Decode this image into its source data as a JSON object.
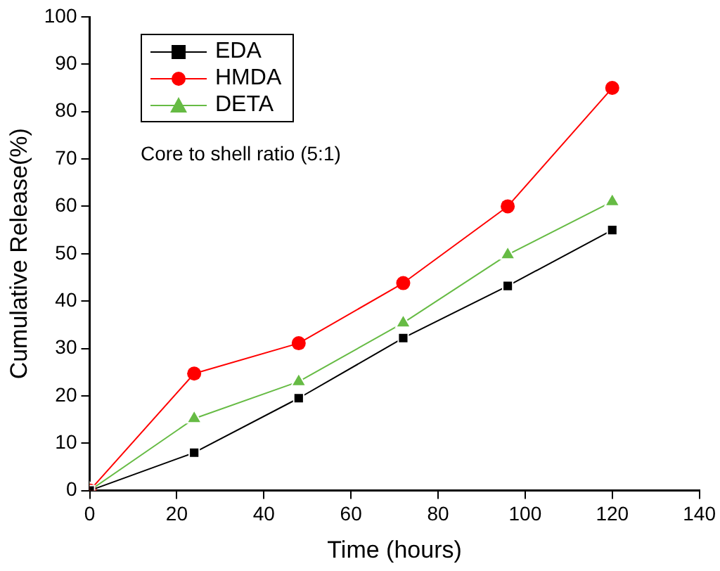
{
  "chart_data": {
    "type": "line",
    "xlabel": "Time (hours)",
    "ylabel": "Cumulative Release(%)",
    "x": [
      0,
      24,
      48,
      72,
      96,
      120
    ],
    "xlim": [
      0,
      140
    ],
    "xticks": [
      0,
      20,
      40,
      60,
      80,
      100,
      120,
      140
    ],
    "ylim": [
      0,
      100
    ],
    "yticks": [
      0,
      10,
      20,
      30,
      40,
      50,
      60,
      70,
      80,
      90,
      100
    ],
    "series": [
      {
        "name": "EDA",
        "color": "#000000",
        "marker": "square",
        "values": [
          0,
          8,
          19.5,
          32.2,
          43.2,
          55
        ]
      },
      {
        "name": "HMDA",
        "color": "#ff0000",
        "marker": "circle",
        "values": [
          0,
          24.7,
          31.1,
          43.8,
          60,
          85
        ]
      },
      {
        "name": "DETA",
        "color": "#66bb44",
        "marker": "triangle",
        "values": [
          0,
          15.2,
          23,
          35.4,
          49.8,
          61
        ]
      }
    ],
    "annotations": [
      "Core to shell ratio (5:1)"
    ],
    "legend": "top left",
    "grid": false
  }
}
